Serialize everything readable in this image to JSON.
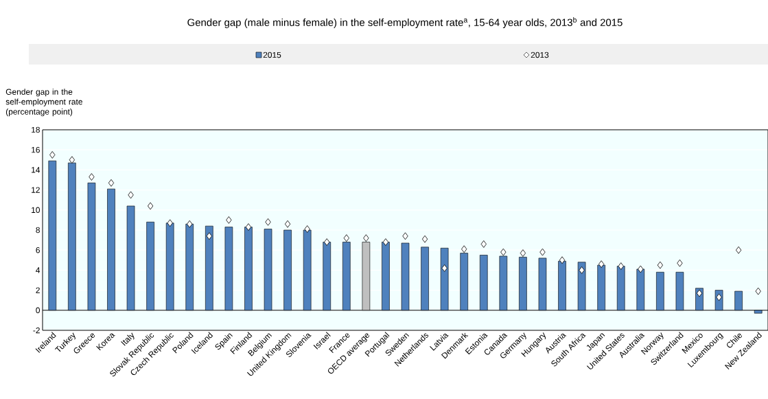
{
  "chart_data": {
    "type": "bar",
    "title": "Gender gap (male minus female) in the self-employment rate$^{a}$, 15-64 year olds, 2013$^{b}$ and 2015",
    "ylabel": "Gender gap in the self-employment rate (percentage point)",
    "categories": [
      "Ireland",
      "Turkey",
      "Greece",
      "Korea",
      "Italy",
      "Slovak Republic",
      "Czech Republic",
      "Poland",
      "Iceland",
      "Spain",
      "Finland",
      "Belgium",
      "United Kingdom",
      "Slovenia",
      "Israel",
      "France",
      "OECD average",
      "Portugal",
      "Sweden",
      "Netherlands",
      "Latvia",
      "Denmark",
      "Estonia",
      "Canada",
      "Germany",
      "Hungary",
      "Austria",
      "South Africa",
      "Japan",
      "United States",
      "Australia",
      "Norway",
      "Switzerland",
      "Mexico",
      "Luxembourg",
      "Chile",
      "New Zealand"
    ],
    "series": [
      {
        "name": "2015",
        "type": "bar",
        "color": "#4f81bd",
        "colors": [
          "#4f81bd",
          "#4f81bd",
          "#4f81bd",
          "#4f81bd",
          "#4f81bd",
          "#4f81bd",
          "#4f81bd",
          "#4f81bd",
          "#4f81bd",
          "#4f81bd",
          "#4f81bd",
          "#4f81bd",
          "#4f81bd",
          "#4f81bd",
          "#4f81bd",
          "#4f81bd",
          "#bfbfbf",
          "#4f81bd",
          "#4f81bd",
          "#4f81bd",
          "#4f81bd",
          "#4f81bd",
          "#4f81bd",
          "#4f81bd",
          "#4f81bd",
          "#4f81bd",
          "#4f81bd",
          "#4f81bd",
          "#4f81bd",
          "#4f81bd",
          "#4f81bd",
          "#4f81bd",
          "#4f81bd",
          "#4f81bd",
          "#4f81bd",
          "#4f81bd",
          "#4f81bd"
        ],
        "values": [
          14.9,
          14.7,
          12.7,
          12.1,
          10.4,
          8.8,
          8.7,
          8.6,
          8.4,
          8.3,
          8.3,
          8.1,
          8.0,
          8.0,
          6.8,
          6.8,
          6.8,
          6.8,
          6.7,
          6.3,
          6.2,
          5.7,
          5.5,
          5.4,
          5.3,
          5.2,
          4.9,
          4.8,
          4.5,
          4.4,
          4.1,
          3.8,
          3.8,
          2.2,
          2.0,
          1.9,
          -0.3
        ]
      },
      {
        "name": "2013",
        "type": "scatter",
        "marker": "diamond",
        "color": "#ffffff",
        "values": [
          15.5,
          15.0,
          13.3,
          12.7,
          11.5,
          10.4,
          8.7,
          8.6,
          7.4,
          9.0,
          8.3,
          8.8,
          8.6,
          8.1,
          6.8,
          7.2,
          7.2,
          6.8,
          7.4,
          7.1,
          4.2,
          6.1,
          6.6,
          5.8,
          5.7,
          5.8,
          5.0,
          4.0,
          4.6,
          4.4,
          4.1,
          4.5,
          4.7,
          1.7,
          1.3,
          6.0,
          1.9
        ]
      }
    ],
    "ylim": [
      -2,
      18
    ],
    "yticks": [
      -2,
      0,
      2,
      4,
      6,
      8,
      10,
      12,
      14,
      16,
      18
    ],
    "grid": "y",
    "legend": "top"
  }
}
